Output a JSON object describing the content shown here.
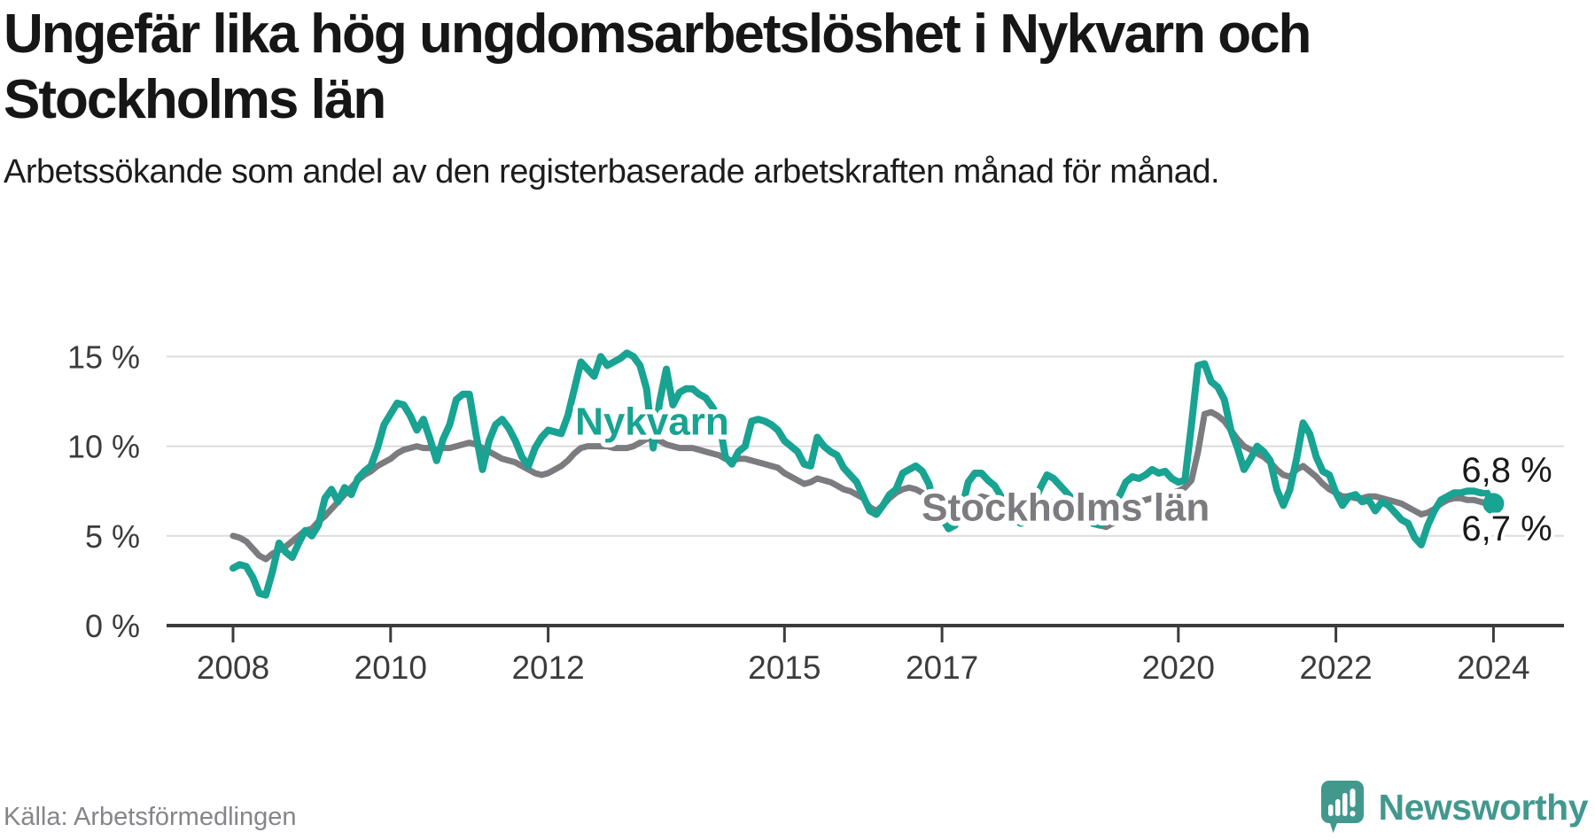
{
  "header": {
    "title": "Ungefär lika hög ungdomsarbetslöshet i Nykvarn och Stockholms län",
    "subtitle": "Arbetssökande som andel av den registerbaserade arbetskraften månad för månad."
  },
  "footer": {
    "source": "Källa: Arbetsförmedlingen",
    "brand": "Newsworthy"
  },
  "colors": {
    "nykvarn": "#18a392",
    "stockholm": "#7b7b80",
    "grid": "#dcdcdc",
    "axis": "#3c3c3c",
    "tick_label": "#3c3c3c",
    "end_label": "#1a1a1a",
    "brand": "#43988e",
    "source_text": "#85858a",
    "background": "#ffffff"
  },
  "chart_data": {
    "type": "line",
    "title": "Ungefär lika hög ungdomsarbetslöshet i Nykvarn och Stockholms län",
    "ylabel": "",
    "xlabel": "",
    "unit": "%",
    "grid": "horizontal",
    "legend_position": "inline-labels",
    "x_start_year": 2008,
    "x_step_months": 1,
    "x_end": "2024-01",
    "ylim": [
      0,
      16.6
    ],
    "xlim": [
      2006.9,
      2025.3
    ],
    "yticks": [
      {
        "value": 15,
        "label": "15 %"
      },
      {
        "value": 10,
        "label": "10 %"
      },
      {
        "value": 5,
        "label": "5 %"
      },
      {
        "value": 0,
        "label": "0 %"
      }
    ],
    "xticks": [
      {
        "value": 2008,
        "label": "2008"
      },
      {
        "value": 2010,
        "label": "2010"
      },
      {
        "value": 2012,
        "label": "2012"
      },
      {
        "value": 2015,
        "label": "2015"
      },
      {
        "value": 2017,
        "label": "2017"
      },
      {
        "value": 2020,
        "label": "2020"
      },
      {
        "value": 2022,
        "label": "2022"
      },
      {
        "value": 2024,
        "label": "2024"
      }
    ],
    "annotations": [
      {
        "text": "6,8 %",
        "x": 2024.17,
        "y": 8.0
      },
      {
        "text": "6,7 %",
        "x": 2024.17,
        "y": 4.75
      }
    ],
    "series": [
      {
        "name": "Nykvarn",
        "color_key": "nykvarn",
        "stroke_width": 8,
        "end_marker": true,
        "end_value_label": "6,8 %",
        "label": {
          "text": "Nykvarn",
          "x": 2013.32,
          "y": 11.4
        },
        "values": [
          3.2,
          3.4,
          3.3,
          2.7,
          1.8,
          1.7,
          3.0,
          4.6,
          4.1,
          3.8,
          4.6,
          5.3,
          5.0,
          5.6,
          7.1,
          7.6,
          6.9,
          7.7,
          7.3,
          8.2,
          8.6,
          8.9,
          9.9,
          11.2,
          11.8,
          12.4,
          12.3,
          11.7,
          10.9,
          11.5,
          10.4,
          9.2,
          10.4,
          11.2,
          12.6,
          12.9,
          12.9,
          10.7,
          8.7,
          10.3,
          11.2,
          11.5,
          11.0,
          10.3,
          9.4,
          8.9,
          9.9,
          10.5,
          10.9,
          10.8,
          10.7,
          11.7,
          13.2,
          14.7,
          14.3,
          13.9,
          15.0,
          14.5,
          14.7,
          14.9,
          15.2,
          15.0,
          14.5,
          13.2,
          9.9,
          12.5,
          14.3,
          12.3,
          13.0,
          13.2,
          13.2,
          12.9,
          12.7,
          12.2,
          11.5,
          9.4,
          9.0,
          9.7,
          10.0,
          11.4,
          11.5,
          11.4,
          11.2,
          10.9,
          10.3,
          10.0,
          9.7,
          9.0,
          8.9,
          10.5,
          10.0,
          9.7,
          9.5,
          8.8,
          8.4,
          8.0,
          7.2,
          6.4,
          6.2,
          6.7,
          7.3,
          7.6,
          8.5,
          8.7,
          8.9,
          8.6,
          7.9,
          6.5,
          6.0,
          5.4,
          5.6,
          6.5,
          8.0,
          8.5,
          8.5,
          8.1,
          7.8,
          7.2,
          6.5,
          5.9,
          5.7,
          5.9,
          6.8,
          7.7,
          8.4,
          8.2,
          7.8,
          7.4,
          7.0,
          6.5,
          6.0,
          5.7,
          5.6,
          5.8,
          6.5,
          7.2,
          8.0,
          8.3,
          8.2,
          8.4,
          8.7,
          8.5,
          8.6,
          8.2,
          8.0,
          8.1,
          11.2,
          14.5,
          14.6,
          13.6,
          13.3,
          12.6,
          10.9,
          9.9,
          8.7,
          9.3,
          10.0,
          9.7,
          9.2,
          7.6,
          6.7,
          7.6,
          9.3,
          11.3,
          10.7,
          9.4,
          8.6,
          8.4,
          7.4,
          6.7,
          7.2,
          7.3,
          6.9,
          7.0,
          6.4,
          6.9,
          6.7,
          6.3,
          5.9,
          5.7,
          4.9,
          4.5,
          5.6,
          6.4,
          7.0,
          7.2,
          7.4,
          7.4,
          7.5,
          7.5,
          7.4,
          7.4,
          6.8
        ]
      },
      {
        "name": "Stockholms län",
        "color_key": "stockholm",
        "stroke_width": 7,
        "end_marker": false,
        "end_value_label": "6,7 %",
        "label": {
          "text": "Stockholms län",
          "x": 2018.57,
          "y": 6.6
        },
        "values": [
          5.0,
          4.9,
          4.7,
          4.3,
          3.9,
          3.7,
          4.0,
          4.2,
          4.4,
          4.7,
          5.0,
          5.3,
          5.4,
          5.8,
          6.1,
          6.5,
          6.9,
          7.3,
          7.7,
          8.1,
          8.4,
          8.6,
          8.9,
          9.1,
          9.3,
          9.6,
          9.8,
          9.9,
          10.0,
          9.9,
          9.9,
          9.8,
          9.9,
          9.9,
          10.0,
          10.1,
          10.2,
          10.1,
          9.9,
          9.7,
          9.5,
          9.3,
          9.2,
          9.1,
          8.9,
          8.7,
          8.5,
          8.4,
          8.5,
          8.7,
          8.9,
          9.2,
          9.6,
          9.9,
          10.0,
          10.0,
          10.0,
          10.0,
          9.9,
          9.9,
          9.9,
          10.0,
          10.2,
          10.4,
          10.5,
          10.3,
          10.1,
          10.0,
          9.9,
          9.9,
          9.9,
          9.8,
          9.7,
          9.6,
          9.5,
          9.3,
          9.2,
          9.3,
          9.3,
          9.2,
          9.1,
          9.0,
          8.9,
          8.8,
          8.5,
          8.3,
          8.1,
          7.9,
          8.0,
          8.2,
          8.1,
          8.0,
          7.8,
          7.6,
          7.5,
          7.3,
          7.1,
          6.6,
          6.4,
          6.7,
          7.1,
          7.4,
          7.6,
          7.7,
          7.6,
          7.4,
          7.2,
          6.9,
          6.6,
          6.3,
          6.2,
          6.4,
          6.7,
          7.0,
          7.2,
          7.1,
          6.9,
          6.7,
          6.4,
          6.2,
          6.0,
          5.9,
          6.1,
          6.4,
          6.7,
          6.9,
          7.0,
          6.8,
          6.6,
          6.3,
          6.0,
          5.8,
          5.6,
          5.5,
          5.7,
          6.0,
          6.4,
          6.7,
          6.9,
          7.0,
          7.1,
          7.2,
          7.3,
          7.4,
          7.5,
          7.7,
          8.1,
          9.7,
          11.8,
          11.9,
          11.7,
          11.4,
          10.9,
          10.4,
          10.0,
          9.8,
          9.6,
          9.4,
          9.1,
          8.7,
          8.4,
          8.3,
          8.7,
          8.9,
          8.6,
          8.3,
          7.9,
          7.6,
          7.4,
          7.2,
          7.2,
          7.1,
          7.1,
          7.2,
          7.2,
          7.1,
          7.0,
          6.9,
          6.8,
          6.6,
          6.4,
          6.2,
          6.3,
          6.5,
          6.8,
          7.0,
          7.1,
          7.1,
          7.0,
          7.0,
          6.9,
          6.8,
          6.7
        ]
      }
    ]
  }
}
